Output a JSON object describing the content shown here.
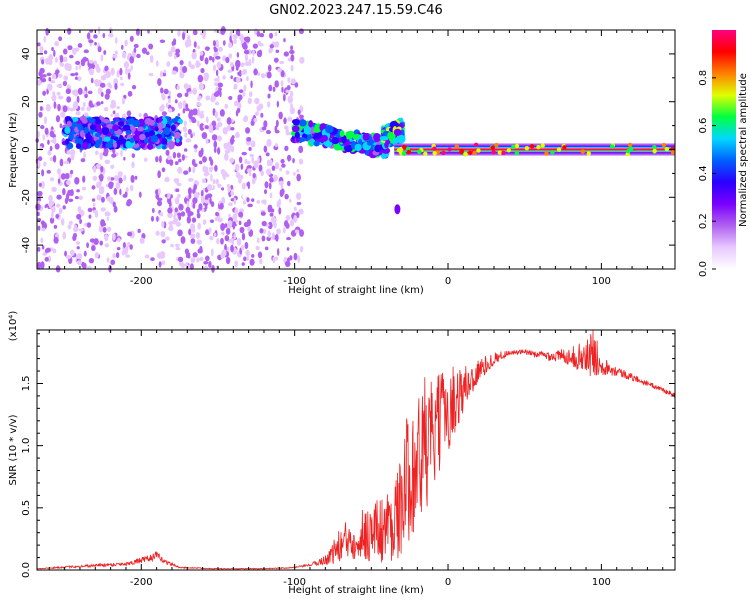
{
  "figure_title": "GN02.2023.247.15.59.C46",
  "colors": {
    "line": "#ee2222",
    "axis": "#000000",
    "background": "#ffffff",
    "colormap": [
      "#ffffff",
      "#e8c8ff",
      "#b060f0",
      "#7a00ff",
      "#2a00ff",
      "#0060ff",
      "#00d8ff",
      "#00ff40",
      "#e0ff00",
      "#ff8000",
      "#ff0000",
      "#ff0080"
    ]
  },
  "chart_data": [
    {
      "type": "heatmap",
      "title": "",
      "xlabel": "Height of straight line (km)",
      "ylabel": "Frequency (Hz)",
      "xlim": [
        -268,
        148
      ],
      "ylim": [
        -50,
        50
      ],
      "xticks": [
        -200,
        -100,
        0,
        100
      ],
      "xtick_labels": [
        "-200",
        "-100",
        "0",
        "100"
      ],
      "yticks": [
        -40,
        -20,
        0,
        20,
        40
      ],
      "ytick_labels": [
        "-40",
        "-20",
        "0",
        "20",
        "40"
      ],
      "grid": false,
      "colorbar": {
        "label": "Normalized spectral amplitude",
        "range": [
          0,
          1
        ],
        "ticks": [
          0.0,
          0.2,
          0.4,
          0.6,
          0.8
        ],
        "tick_labels": [
          "0.0",
          "0.2",
          "0.4",
          "0.6",
          "0.8"
        ]
      },
      "features": [
        {
          "description": "scattered low-amplitude noise",
          "x_range": [
            -268,
            -95
          ],
          "y_range": [
            -50,
            50
          ],
          "amplitude": 0.15
        },
        {
          "description": "noise band",
          "x_range": [
            -250,
            -175
          ],
          "y_center": 7,
          "y_halfwidth": 6,
          "amplitude": 0.3
        },
        {
          "description": "descending signal",
          "x_range": [
            -100,
            -40
          ],
          "y_start": 8,
          "y_end": 1,
          "amplitude": 0.35
        },
        {
          "description": "upper branch",
          "x_range": [
            -42,
            -30
          ],
          "y_start": 5,
          "y_end": 8,
          "amplitude": 0.4
        },
        {
          "description": "tonal line",
          "x_range": [
            -35,
            148
          ],
          "y_center": 0,
          "amplitude": 0.85
        },
        {
          "description": "isolated spot",
          "x": -33,
          "y": -25,
          "amplitude": 0.25
        }
      ]
    },
    {
      "type": "line",
      "title": "",
      "xlabel": "Height of straight line (km)",
      "ylabel": "SNR (10 * v/v)",
      "y_multiplier": "(x10⁴)",
      "xlim": [
        -268,
        148
      ],
      "ylim": [
        0,
        1.93
      ],
      "y_units_scale": 10000,
      "xticks": [
        -200,
        -100,
        0,
        100
      ],
      "xtick_labels": [
        "-200",
        "-100",
        "0",
        "100"
      ],
      "yticks": [
        0.0,
        0.5,
        1.0,
        1.5
      ],
      "ytick_labels": [
        "0.0",
        "0.5",
        "1.0",
        "1.5"
      ],
      "grid": false,
      "series": [
        {
          "color": "#ee2222",
          "x": [
            -268,
            -240,
            -210,
            -195,
            -190,
            -185,
            -175,
            -150,
            -120,
            -100,
            -90,
            -80,
            -70,
            -60,
            -50,
            -40,
            -30,
            -25,
            -20,
            -15,
            -10,
            -5,
            0,
            10,
            20,
            30,
            40,
            50,
            60,
            70,
            80,
            90,
            95,
            100,
            110,
            120,
            130,
            140,
            148
          ],
          "y": [
            0.01,
            0.03,
            0.05,
            0.09,
            0.12,
            0.07,
            0.02,
            0.01,
            0.01,
            0.02,
            0.04,
            0.08,
            0.2,
            0.28,
            0.3,
            0.35,
            0.5,
            0.85,
            0.85,
            1.0,
            1.05,
            1.2,
            1.3,
            1.45,
            1.6,
            1.7,
            1.75,
            1.75,
            1.73,
            1.72,
            1.72,
            1.7,
            1.75,
            1.65,
            1.6,
            1.55,
            1.5,
            1.45,
            1.4
          ],
          "noise_amplitude": [
            0.003,
            0.01,
            0.015,
            0.03,
            0.03,
            0.02,
            0.005,
            0.003,
            0.003,
            0.005,
            0.01,
            0.04,
            0.15,
            0.2,
            0.25,
            0.3,
            0.4,
            0.6,
            0.55,
            0.6,
            0.45,
            0.4,
            0.35,
            0.2,
            0.1,
            0.05,
            0.02,
            0.02,
            0.03,
            0.05,
            0.07,
            0.15,
            0.2,
            0.08,
            0.04,
            0.03,
            0.02,
            0.02,
            0.02
          ]
        }
      ]
    }
  ]
}
